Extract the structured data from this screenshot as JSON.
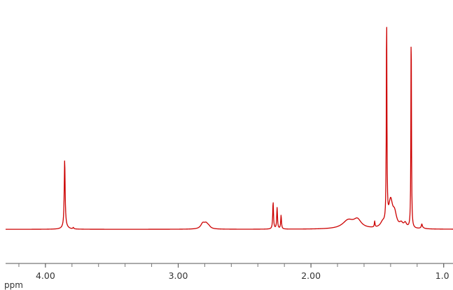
{
  "chart_data": {
    "type": "line",
    "title": "",
    "xlabel": "ppm",
    "ylabel": "",
    "x_reversed": true,
    "xlim": [
      4.3,
      0.93
    ],
    "ylim": [
      0,
      100
    ],
    "grid": false,
    "legend": "none",
    "x_ticks": [
      {
        "value": 4.0,
        "label": "4.00"
      },
      {
        "value": 3.0,
        "label": "3.00"
      },
      {
        "value": 2.0,
        "label": "2.00"
      },
      {
        "value": 1.0,
        "label": "1.0"
      }
    ],
    "minor_tick_step": 0.2,
    "baseline": 5,
    "series": [
      {
        "color": "#cc0000",
        "peaks": [
          {
            "center": 3.855,
            "height": 28.5,
            "width": 0.004
          },
          {
            "center": 3.85,
            "height": 1.2,
            "width": 0.02
          },
          {
            "center": 3.79,
            "height": 0.6,
            "width": 0.004
          },
          {
            "center": 2.815,
            "height": 2.2,
            "width": 0.018
          },
          {
            "center": 2.79,
            "height": 2.0,
            "width": 0.018
          },
          {
            "center": 2.77,
            "height": 0.8,
            "width": 0.015
          },
          {
            "center": 2.285,
            "height": 11.5,
            "width": 0.0035
          },
          {
            "center": 2.255,
            "height": 9.0,
            "width": 0.0035
          },
          {
            "center": 2.225,
            "height": 5.8,
            "width": 0.0035
          },
          {
            "center": 1.72,
            "height": 3.5,
            "width": 0.05
          },
          {
            "center": 1.65,
            "height": 3.5,
            "width": 0.035
          },
          {
            "center": 1.52,
            "height": 2.5,
            "width": 0.003
          },
          {
            "center": 1.46,
            "height": 2.0,
            "width": 0.02
          },
          {
            "center": 1.43,
            "height": 89.5,
            "width": 0.0026
          },
          {
            "center": 1.4,
            "height": 11.0,
            "width": 0.018
          },
          {
            "center": 1.37,
            "height": 5.5,
            "width": 0.018
          },
          {
            "center": 1.32,
            "height": 1.8,
            "width": 0.015
          },
          {
            "center": 1.29,
            "height": 2.0,
            "width": 0.012
          },
          {
            "center": 1.245,
            "height": 88.5,
            "width": 0.0024
          },
          {
            "center": 1.165,
            "height": 1.6,
            "width": 0.004
          },
          {
            "center": 1.16,
            "height": 0.5,
            "width": 0.015
          }
        ]
      }
    ]
  }
}
